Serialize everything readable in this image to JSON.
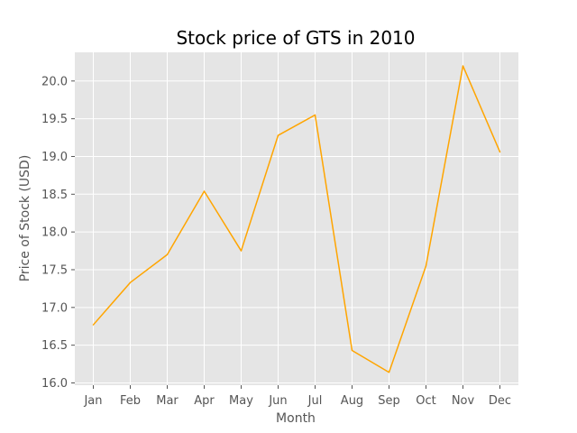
{
  "chart_data": {
    "type": "line",
    "title": "Stock price of GTS in 2010",
    "xlabel": "Month",
    "ylabel": "Price of Stock (USD)",
    "categories": [
      "Jan",
      "Feb",
      "Mar",
      "Apr",
      "May",
      "Jun",
      "Jul",
      "Aug",
      "Sep",
      "Oct",
      "Nov",
      "Dec"
    ],
    "series": [
      {
        "values": [
          16.77,
          17.33,
          17.7,
          18.54,
          17.75,
          19.28,
          19.55,
          16.43,
          16.14,
          17.55,
          20.2,
          19.06
        ]
      }
    ],
    "ylim": [
      15.97,
      20.38
    ],
    "yticks": [
      "16.0",
      "16.5",
      "17.0",
      "17.5",
      "18.0",
      "18.5",
      "19.0",
      "19.5",
      "20.0"
    ],
    "grid": true,
    "line_color": "#FFA500",
    "plot_background": "#E5E5E5",
    "grid_color": "#FFFFFF"
  }
}
